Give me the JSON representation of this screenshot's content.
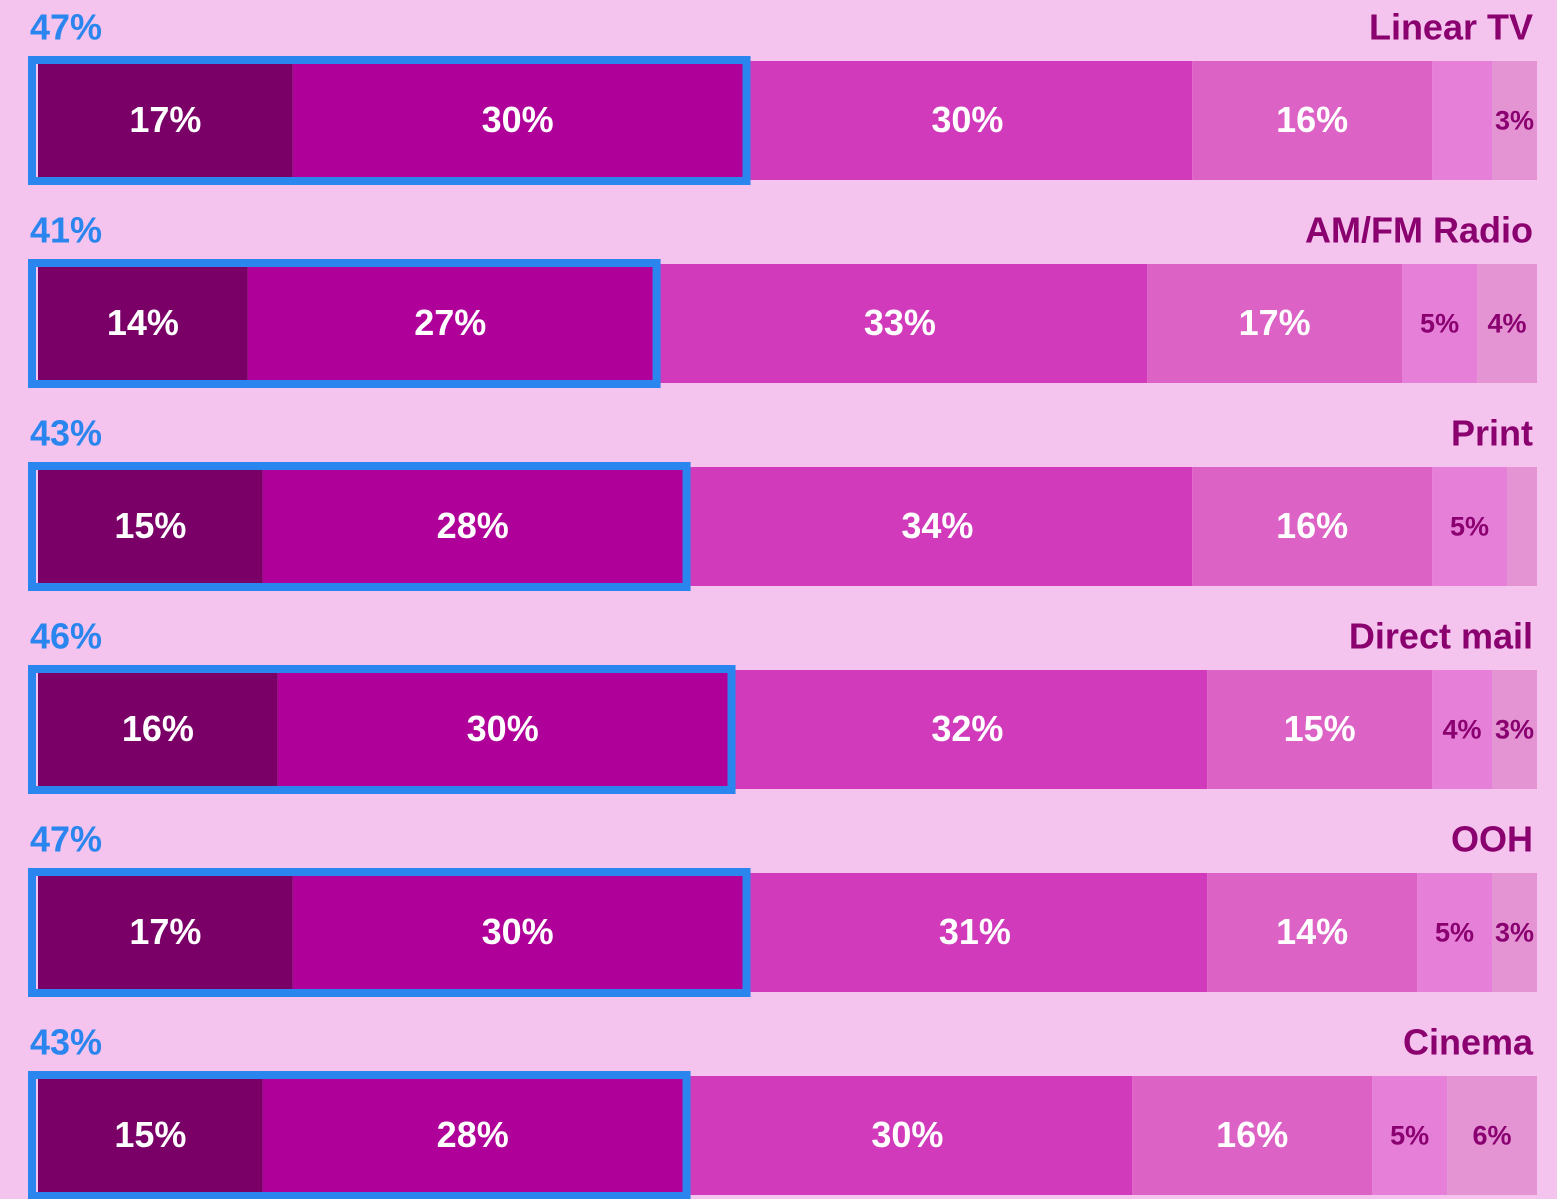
{
  "chart_data": {
    "type": "stacked-bar-horizontal",
    "categories": [
      "Linear TV",
      "AM/FM Radio",
      "Print",
      "Direct mail",
      "OOH",
      "Cinema"
    ],
    "xlim": [
      0,
      100
    ],
    "series": [
      {
        "color": "#7a0068",
        "values": [
          17,
          14,
          15,
          16,
          17,
          15
        ],
        "value_labels": [
          "17%",
          "14%",
          "15%",
          "16%",
          "17%",
          "15%"
        ]
      },
      {
        "color": "#b0009a",
        "values": [
          30,
          27,
          28,
          30,
          30,
          28
        ],
        "value_labels": [
          "30%",
          "27%",
          "28%",
          "30%",
          "30%",
          "28%"
        ]
      },
      {
        "color": "#d03abb",
        "values": [
          30,
          33,
          34,
          32,
          31,
          30
        ],
        "value_labels": [
          "30%",
          "33%",
          "34%",
          "32%",
          "31%",
          "30%"
        ]
      },
      {
        "color": "#dc62c6",
        "values": [
          16,
          17,
          16,
          15,
          14,
          16
        ],
        "value_labels": [
          "16%",
          "17%",
          "16%",
          "15%",
          "14%",
          "16%"
        ]
      },
      {
        "color": "#e57fd7",
        "values": [
          4,
          5,
          5,
          4,
          5,
          5
        ],
        "value_labels": [
          null,
          "5%",
          "5%",
          "4%",
          "5%",
          "5%"
        ]
      },
      {
        "color": "#e494d3",
        "values": [
          3,
          4,
          2,
          3,
          3,
          6
        ],
        "value_labels": [
          "3%",
          "4%",
          null,
          "3%",
          "3%",
          "6%"
        ]
      }
    ],
    "highlight": {
      "color": "#2a86ee",
      "values": [
        47,
        41,
        43,
        46,
        47,
        43
      ],
      "value_labels": [
        "47%",
        "41%",
        "43%",
        "46%",
        "47%",
        "43%"
      ]
    }
  }
}
